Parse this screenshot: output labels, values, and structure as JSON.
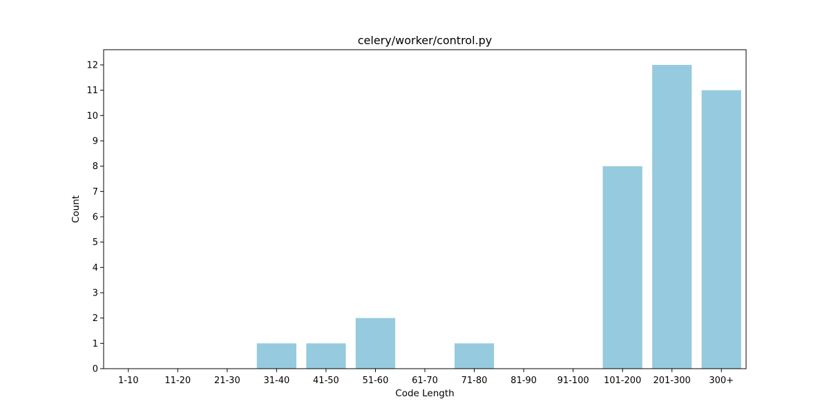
{
  "chart_data": {
    "type": "bar",
    "title": "celery/worker/control.py",
    "xlabel": "Code Length",
    "ylabel": "Count",
    "categories": [
      "1-10",
      "11-20",
      "21-30",
      "31-40",
      "41-50",
      "51-60",
      "61-70",
      "71-80",
      "81-90",
      "91-100",
      "101-200",
      "201-300",
      "300+"
    ],
    "values": [
      0,
      0,
      0,
      1,
      1,
      2,
      0,
      1,
      0,
      0,
      8,
      12,
      11
    ],
    "ylim": [
      0,
      12.6
    ],
    "yticks": [
      "0",
      "1",
      "2",
      "3",
      "4",
      "5",
      "6",
      "7",
      "8",
      "9",
      "10",
      "11",
      "12"
    ],
    "bar_color": "#96cade",
    "grid": false,
    "legend": "none"
  }
}
